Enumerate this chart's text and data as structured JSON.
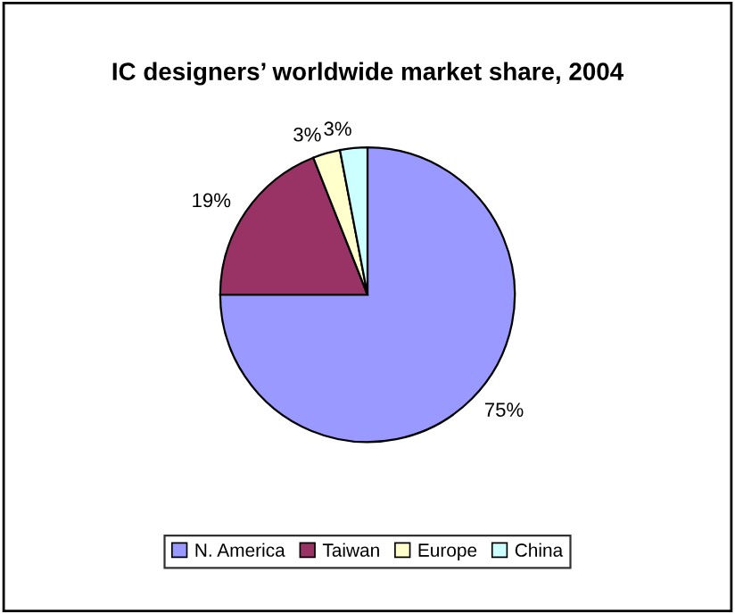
{
  "chart_data": {
    "type": "pie",
    "title": "IC designers’ worldwide market share, 2004",
    "categories": [
      "N. America",
      "Taiwan",
      "Europe",
      "China"
    ],
    "values": [
      75,
      19,
      3,
      3
    ],
    "colors": [
      "#9999ff",
      "#993366",
      "#ffffcc",
      "#ccffff"
    ],
    "value_labels": [
      "75%",
      "19%",
      "3%",
      "3%"
    ],
    "legend": "bottom"
  }
}
